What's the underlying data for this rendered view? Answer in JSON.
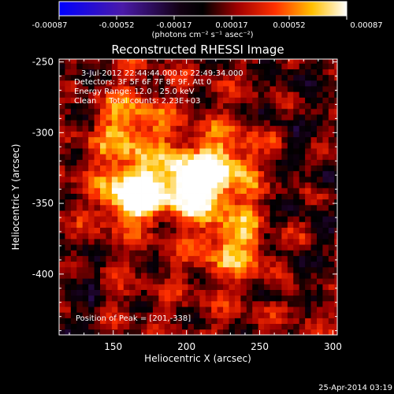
{
  "colorbar": {
    "ticks": [
      "-0.00087",
      "-0.00052",
      "-0.00017",
      "0.00017",
      "0.00052",
      "0.00087"
    ],
    "units": "(photons cm⁻² s⁻¹ asec⁻²)"
  },
  "chart_data": {
    "type": "heatmap",
    "title": "Reconstructed RHESSI Image",
    "xlabel": "Heliocentric X (arcsec)",
    "ylabel": "Heliocentric Y (arcsec)",
    "xlim": [
      113,
      303
    ],
    "ylim": [
      -443,
      -248
    ],
    "xticks": [
      "150",
      "200",
      "250",
      "300"
    ],
    "yticks": [
      "-250",
      "-300",
      "-350",
      "-400"
    ],
    "zlim": [
      -0.00087,
      0.00087
    ],
    "colormap": "hot (blue–purple–black–red–yellow–white)",
    "annotations": [
      "3-Jul-2012 22:44:44.000 to 22:49:34.000",
      "Detectors: 3F 5F 6F 7F 8F 9F, Att 0",
      "Energy Range: 12.0 - 25.0 keV",
      "Clean     Total counts: 2.23E+03"
    ],
    "peak_label": "Position of Peak = [201,-338]",
    "peak": [
      201,
      -338
    ],
    "bright_sources": [
      {
        "x": 162,
        "y": -345
      },
      {
        "x": 201,
        "y": -338
      },
      {
        "x": 160,
        "y": -300
      },
      {
        "x": 225,
        "y": -325
      },
      {
        "x": 230,
        "y": -380
      }
    ]
  },
  "footer": {
    "timestamp": "25-Apr-2014 03:19"
  }
}
